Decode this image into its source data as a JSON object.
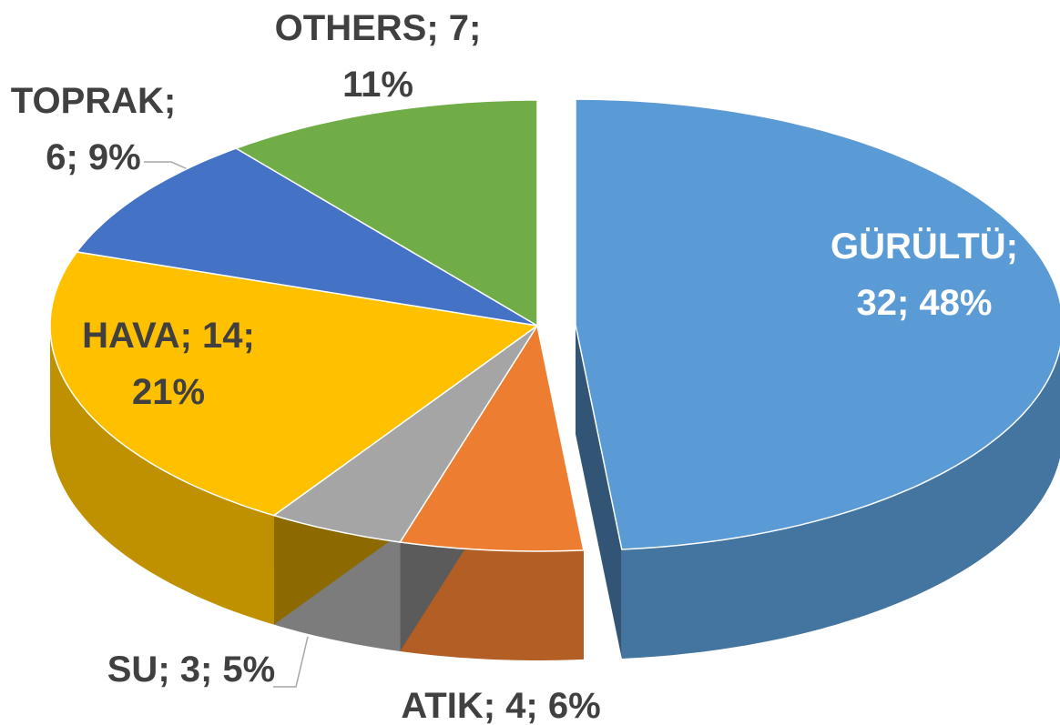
{
  "chart_data": {
    "type": "pie3d",
    "labels": [
      "GÜRÜLTÜ; 32; 48%",
      "ATIK; 4; 6%",
      "SU; 3; 5%",
      "HAVA; 14; 21%",
      "TOPRAK; 6; 9%",
      "OTHERS; 7; 11%"
    ],
    "values": [
      32,
      4,
      3,
      14,
      6,
      7
    ],
    "colors": [
      "#5b9bd5",
      "#ed7d31",
      "#a5a5a5",
      "#ffc000",
      "#4472c4",
      "#70ad47"
    ],
    "exploded": [
      0
    ]
  }
}
